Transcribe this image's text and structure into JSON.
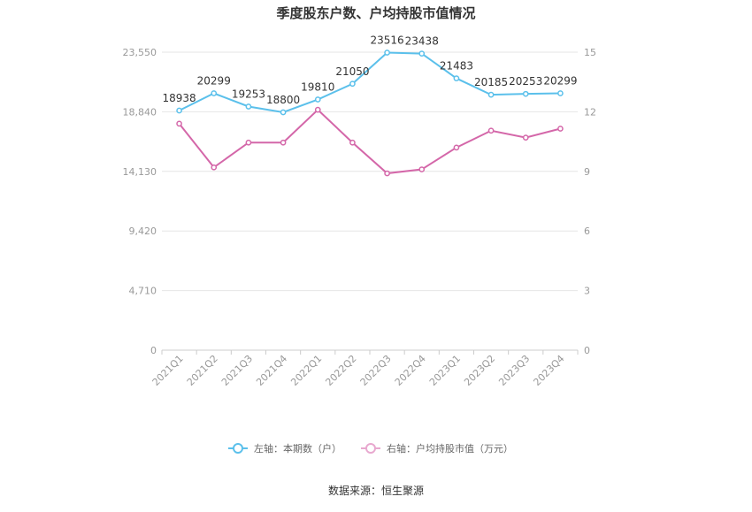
{
  "title": "季度股东户数、户均持股市值情况",
  "source": "数据来源：恒生聚源",
  "colors": {
    "left_series": "#5bc0eb",
    "right_series": "#d467a9",
    "grid": "#e6e6e6",
    "axis": "#999999",
    "tick_text": "#999999",
    "label_text": "#333333",
    "title_text": "#333333"
  },
  "chart_data": {
    "type": "line",
    "categories": [
      "2021Q1",
      "2021Q2",
      "2021Q3",
      "2021Q4",
      "2022Q1",
      "2022Q2",
      "2022Q3",
      "2022Q4",
      "2023Q1",
      "2023Q2",
      "2023Q3",
      "2023Q4"
    ],
    "y_left": {
      "ticks": [
        0,
        4710,
        9420,
        14130,
        18840,
        23550
      ],
      "tick_labels": [
        "0",
        "4,710",
        "9,420",
        "14,130",
        "18,840",
        "23,550"
      ],
      "ylim": [
        0,
        23550
      ]
    },
    "y_right": {
      "ticks": [
        0,
        3,
        6,
        9,
        12,
        15
      ],
      "tick_labels": [
        "0",
        "3",
        "6",
        "9",
        "12",
        "15"
      ],
      "ylim": [
        0,
        15
      ]
    },
    "series": [
      {
        "name": "左轴：本期数（户）",
        "axis": "left",
        "values": [
          18938,
          20299,
          19253,
          18800,
          19810,
          21050,
          23516,
          23438,
          21483,
          20185,
          20253,
          20299
        ],
        "labels": [
          "18938",
          "20299",
          "19253",
          "18800",
          "19810",
          "21050",
          "23516",
          "23438",
          "21483",
          "20185",
          "20253",
          "20299"
        ]
      },
      {
        "name": "右轴：户均持股市值（万元）",
        "axis": "right",
        "values": [
          11.4,
          9.2,
          10.45,
          10.45,
          12.1,
          10.45,
          8.9,
          9.1,
          10.2,
          11.05,
          10.7,
          11.15
        ]
      }
    ],
    "grid": true,
    "legend_position": "bottom"
  }
}
